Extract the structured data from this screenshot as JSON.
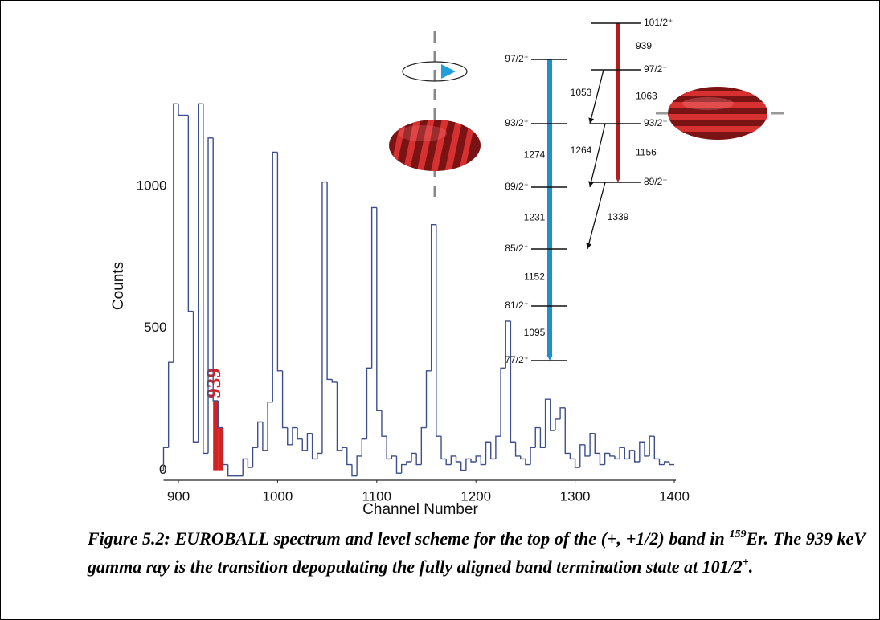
{
  "chart_data": {
    "type": "histogram",
    "xlabel": "Channel Number",
    "ylabel": "Counts",
    "bins": [
      885,
      890,
      895,
      900,
      905,
      910,
      915,
      920,
      925,
      930,
      935,
      940,
      945,
      950,
      955,
      960,
      965,
      970,
      975,
      980,
      985,
      990,
      995,
      1000,
      1005,
      1010,
      1015,
      1020,
      1025,
      1030,
      1035,
      1040,
      1045,
      1050,
      1055,
      1060,
      1065,
      1070,
      1075,
      1080,
      1085,
      1090,
      1095,
      1100,
      1105,
      1110,
      1115,
      1120,
      1125,
      1130,
      1135,
      1140,
      1145,
      1150,
      1155,
      1160,
      1165,
      1170,
      1175,
      1180,
      1185,
      1190,
      1195,
      1200,
      1205,
      1210,
      1215,
      1220,
      1225,
      1230,
      1235,
      1240,
      1245,
      1250,
      1255,
      1260,
      1265,
      1270,
      1275,
      1280,
      1285,
      1290,
      1295,
      1300,
      1305,
      1310,
      1315,
      1320,
      1325,
      1330,
      1335,
      1340,
      1345,
      1350,
      1355,
      1360,
      1365,
      1370,
      1375,
      1380,
      1385,
      1390,
      1395,
      1400
    ],
    "values": [
      80,
      380,
      1290,
      1250,
      1250,
      560,
      100,
      1290,
      60,
      1170,
      245,
      150,
      20,
      -20,
      -20,
      -20,
      40,
      10,
      80,
      170,
      70,
      240,
      1120,
      350,
      150,
      90,
      150,
      110,
      70,
      130,
      40,
      60,
      1015,
      320,
      310,
      70,
      80,
      20,
      -20,
      50,
      110,
      360,
      925,
      210,
      120,
      40,
      50,
      -10,
      20,
      30,
      60,
      20,
      150,
      350,
      865,
      120,
      40,
      20,
      50,
      30,
      0,
      40,
      30,
      50,
      20,
      100,
      40,
      120,
      360,
      525,
      100,
      50,
      40,
      20,
      80,
      150,
      80,
      250,
      140,
      180,
      220,
      60,
      40,
      10,
      90,
      50,
      130,
      60,
      20,
      60,
      50,
      40,
      80,
      40,
      70,
      30,
      100,
      50,
      120,
      40,
      20,
      30,
      20
    ],
    "color": "#3c4f8c",
    "highlight": {
      "label": "939",
      "bins": [
        935,
        940,
        945
      ],
      "values": [
        245,
        150
      ],
      "color": "#d42222"
    },
    "xlim": [
      885,
      1400
    ],
    "ylim": [
      -35,
      1320
    ],
    "xticks": [
      900,
      1000,
      1100,
      1200,
      1300,
      1400
    ],
    "yticks": [
      0,
      500,
      1000
    ]
  },
  "level_scheme": {
    "yrast_band": {
      "color": "#1f8fd0",
      "levels": [
        "97/2⁺",
        "93/2⁺",
        "89/2⁺",
        "85/2⁺",
        "81/2⁺",
        "77/2⁺"
      ],
      "transitions": [
        "1274",
        "1231",
        "1152",
        "1095"
      ]
    },
    "terminating_band": {
      "color": "#b01e1e",
      "levels": [
        "101/2⁺",
        "97/2⁺",
        "93/2⁺",
        "89/2⁺"
      ],
      "transitions": [
        "939",
        "1063",
        "1156"
      ]
    },
    "linking_transitions": [
      "1053",
      "1264",
      "1339"
    ]
  },
  "caption": {
    "label": "Figure 5.2:",
    "parts": [
      "EUROBALL",
      " spectrum and level scheme for the top of the (+, +1/2) band in ",
      "159",
      "Er. The 939 keV gamma ray is the transition depopulating the fully aligned band termination state at 101/2",
      "+",
      "."
    ]
  }
}
